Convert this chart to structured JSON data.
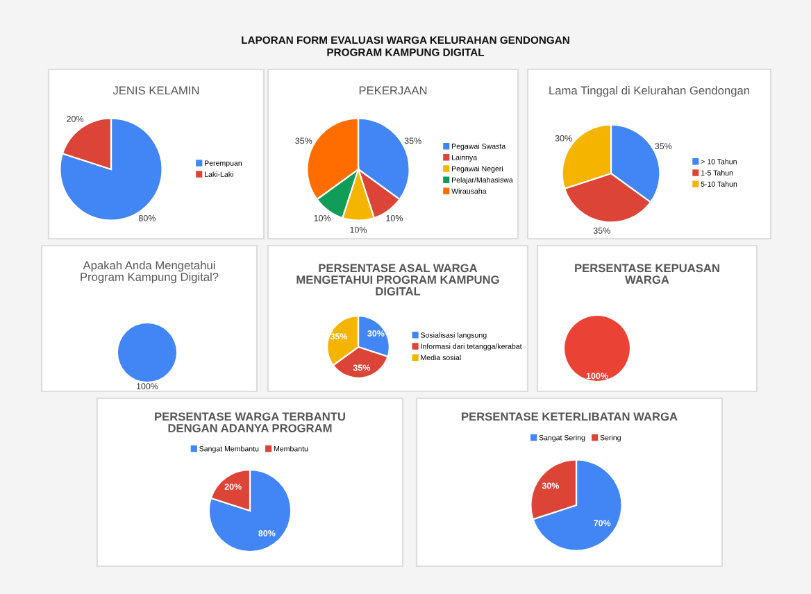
{
  "chart_data": [
    {
      "type": "pie",
      "title": "JENIS KELAMIN",
      "annotations": [
        "LAPORAN FORM EVALUASI WARGA KELURAHAN GENDONGAN\nPROGRAM KAMPUNG DIGITAL"
      ],
      "categories": [
        "Perempuan",
        "Laki-Laki"
      ],
      "values": [
        80,
        20
      ],
      "colors": [
        "#4285f4",
        "#db4437"
      ],
      "value_labels": [
        "80%",
        "20%"
      ],
      "legend": "right"
    },
    {
      "type": "pie",
      "title": "PEKERJAAN",
      "categories": [
        "Pegawai Swasta",
        "Lainnya",
        "Pegawai Negeri",
        "Pelajar/Mahasiswa",
        "Wirausaha"
      ],
      "values": [
        35,
        10,
        10,
        10,
        35
      ],
      "colors": [
        "#4285f4",
        "#db4437",
        "#f4b400",
        "#0f9d58",
        "#ff6d01"
      ],
      "value_labels": [
        "35%",
        "10%",
        "10%",
        "10%",
        "35%"
      ],
      "legend": "right"
    },
    {
      "type": "pie",
      "title": "Lama Tinggal di Kelurahan Gendongan",
      "categories": [
        "> 10 Tahun",
        "1-5 Tahun",
        "5-10 Tahun"
      ],
      "values": [
        35,
        35,
        30
      ],
      "colors": [
        "#4285f4",
        "#db4437",
        "#f4b400"
      ],
      "value_labels": [
        "35%",
        "35%",
        "30%"
      ],
      "legend": "right"
    },
    {
      "type": "pie",
      "title": "Apakah Anda Mengetahui Program Kampung Digital?",
      "categories": [
        null
      ],
      "values": [
        100
      ],
      "colors": [
        "#4285f4"
      ],
      "value_labels": [
        "100%"
      ]
    },
    {
      "type": "pie",
      "title": "PERSENTASE ASAL WARGA MENGETAHUI PROGRAM KAMPUNG DIGITAL",
      "categories": [
        "Sosialisasi langsung",
        "Informasi dari tetangga/kerabat",
        "Media sosial"
      ],
      "values": [
        30,
        35,
        35
      ],
      "colors": [
        "#4285f4",
        "#db4437",
        "#f4b400"
      ],
      "value_labels": [
        "30%",
        "35%",
        "35%"
      ],
      "legend": "right"
    },
    {
      "type": "pie",
      "title": "PERSENTASE KEPUASAN WARGA",
      "categories": [
        null
      ],
      "values": [
        100
      ],
      "colors": [
        "#ea4335"
      ],
      "value_labels": [
        "100%"
      ]
    },
    {
      "type": "pie",
      "title": "PERSENTASE WARGA TERBANTU DENGAN ADANYA PROGRAM",
      "categories": [
        "Sangat Membantu",
        "Membantu"
      ],
      "values": [
        80,
        20
      ],
      "colors": [
        "#4285f4",
        "#db4437"
      ],
      "value_labels": [
        "80%",
        "20%"
      ],
      "legend": "top"
    },
    {
      "type": "pie",
      "title": "PERSENTASE KETERLIBATAN WARGA",
      "categories": [
        "Sangat Sering",
        "Sering"
      ],
      "values": [
        70,
        30
      ],
      "colors": [
        "#4285f4",
        "#db4437"
      ],
      "value_labels": [
        "70%",
        "30%"
      ],
      "legend": "top"
    }
  ]
}
